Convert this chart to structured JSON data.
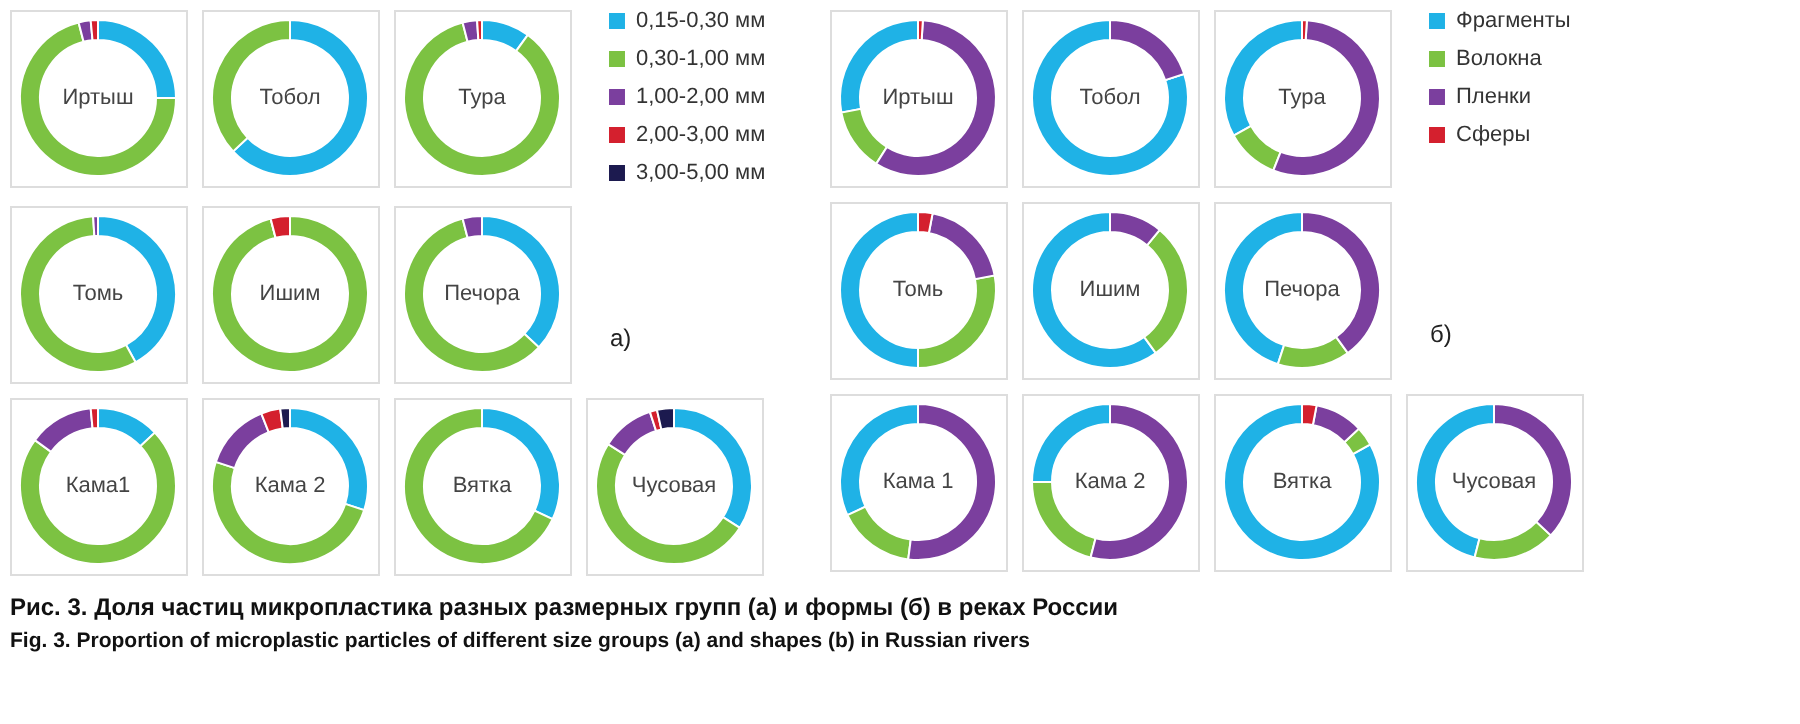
{
  "chart_data": [
    {
      "type": "donut",
      "categories": [
        "0,15-0,30 мм",
        "0,30-1,00 мм",
        "1,00-2,00 мм",
        "2,00-3,00 мм",
        "3,00-5,00 мм"
      ],
      "colors": [
        "#1fb2e6",
        "#7cc242",
        "#7b3f9e",
        "#d4202e",
        "#1c1a4f"
      ],
      "legend": "right",
      "annotations": [
        "а)"
      ],
      "series": [
        {
          "name": "Иртыш",
          "values": [
            25,
            71,
            2.5,
            1.5,
            0
          ]
        },
        {
          "name": "Тобол",
          "values": [
            63,
            37,
            0,
            0,
            0
          ]
        },
        {
          "name": "Тура",
          "values": [
            10,
            86,
            3,
            1,
            0
          ]
        },
        {
          "name": "Томь",
          "values": [
            42,
            57,
            1,
            0,
            0
          ]
        },
        {
          "name": "Ишим",
          "values": [
            0,
            96,
            0,
            4,
            0
          ]
        },
        {
          "name": "Печора",
          "values": [
            37,
            59,
            4,
            0,
            0
          ]
        },
        {
          "name": "Кама1",
          "values": [
            13,
            72,
            13.5,
            1.5,
            0
          ]
        },
        {
          "name": "Кама 2",
          "values": [
            30,
            50,
            14,
            4,
            2
          ]
        },
        {
          "name": "Вятка",
          "values": [
            32,
            68,
            0,
            0,
            0
          ]
        },
        {
          "name": "Чусовая",
          "values": [
            34,
            50,
            11,
            1.5,
            3.5
          ]
        }
      ]
    },
    {
      "type": "donut",
      "categories": [
        "Фрагменты",
        "Волокна",
        "Пленки",
        "Сферы"
      ],
      "colors": [
        "#1fb2e6",
        "#7cc242",
        "#7b3f9e",
        "#d4202e"
      ],
      "legend": "right",
      "annotations": [
        "б)"
      ],
      "series": [
        {
          "name": "Иртыш",
          "values": [
            28,
            13,
            58,
            1
          ]
        },
        {
          "name": "Тобол",
          "values": [
            80,
            0,
            20,
            0
          ]
        },
        {
          "name": "Тура",
          "values": [
            33,
            11,
            55,
            1
          ]
        },
        {
          "name": "Томь",
          "values": [
            50,
            28,
            19,
            3
          ]
        },
        {
          "name": "Ишим",
          "values": [
            60,
            29,
            11,
            0
          ]
        },
        {
          "name": "Печора",
          "values": [
            45,
            15,
            40,
            0
          ]
        },
        {
          "name": "Кама 1",
          "values": [
            32,
            16,
            52,
            0
          ]
        },
        {
          "name": "Кама 2",
          "values": [
            25,
            21,
            54,
            0
          ]
        },
        {
          "name": "Вятка",
          "values": [
            83,
            4,
            10,
            3
          ]
        },
        {
          "name": "Чусовая",
          "values": [
            46,
            17,
            37,
            0
          ]
        }
      ]
    },
    {
      "type": "other",
      "annotations": [
        "Рис. 3. Доля частиц микропластика разных размерных групп (а) и формы (б) в реках России",
        "Fig. 3. Proportion of microplastic particles of different size groups (a) and shapes (b) in Russian rivers"
      ]
    }
  ]
}
